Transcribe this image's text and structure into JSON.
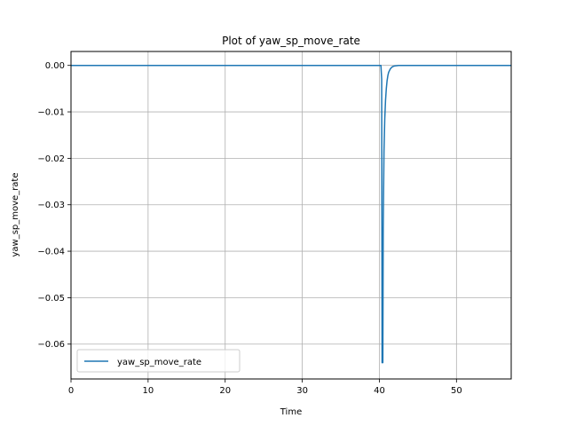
{
  "chart_data": {
    "type": "line",
    "title": "Plot of yaw_sp_move_rate",
    "xlabel": "Time",
    "ylabel": "yaw_sp_move_rate",
    "xlim": [
      0,
      57.1
    ],
    "ylim": [
      -0.0675,
      0.003
    ],
    "grid": true,
    "legend_position": "lower-left",
    "x_ticks": [
      0,
      10,
      20,
      30,
      40,
      50
    ],
    "x_tick_labels": [
      "0",
      "10",
      "20",
      "30",
      "40",
      "50"
    ],
    "y_ticks": [
      0.0,
      -0.01,
      -0.02,
      -0.03,
      -0.04,
      -0.05,
      -0.06
    ],
    "y_tick_labels": [
      "0.00",
      "−0.01",
      "−0.02",
      "−0.03",
      "−0.04",
      "−0.05",
      "−0.06"
    ],
    "series": [
      {
        "name": "yaw_sp_move_rate",
        "color": "#1f77b4",
        "x": [
          0,
          10,
          20,
          30,
          40,
          40.2,
          40.3,
          40.35,
          40.45,
          40.5,
          40.6,
          40.7,
          40.8,
          40.9,
          41.0,
          41.1,
          41.2,
          41.4,
          41.6,
          41.8,
          42.0,
          42.5,
          45,
          50,
          57.1
        ],
        "y": [
          0,
          0,
          0,
          0,
          0,
          0,
          -0.003,
          -0.064,
          -0.064,
          -0.035,
          -0.0185,
          -0.0115,
          -0.0075,
          -0.005,
          -0.0033,
          -0.0022,
          -0.0015,
          -0.0008,
          -0.0004,
          -0.0002,
          -0.0001,
          0,
          0,
          0,
          0
        ]
      }
    ]
  }
}
